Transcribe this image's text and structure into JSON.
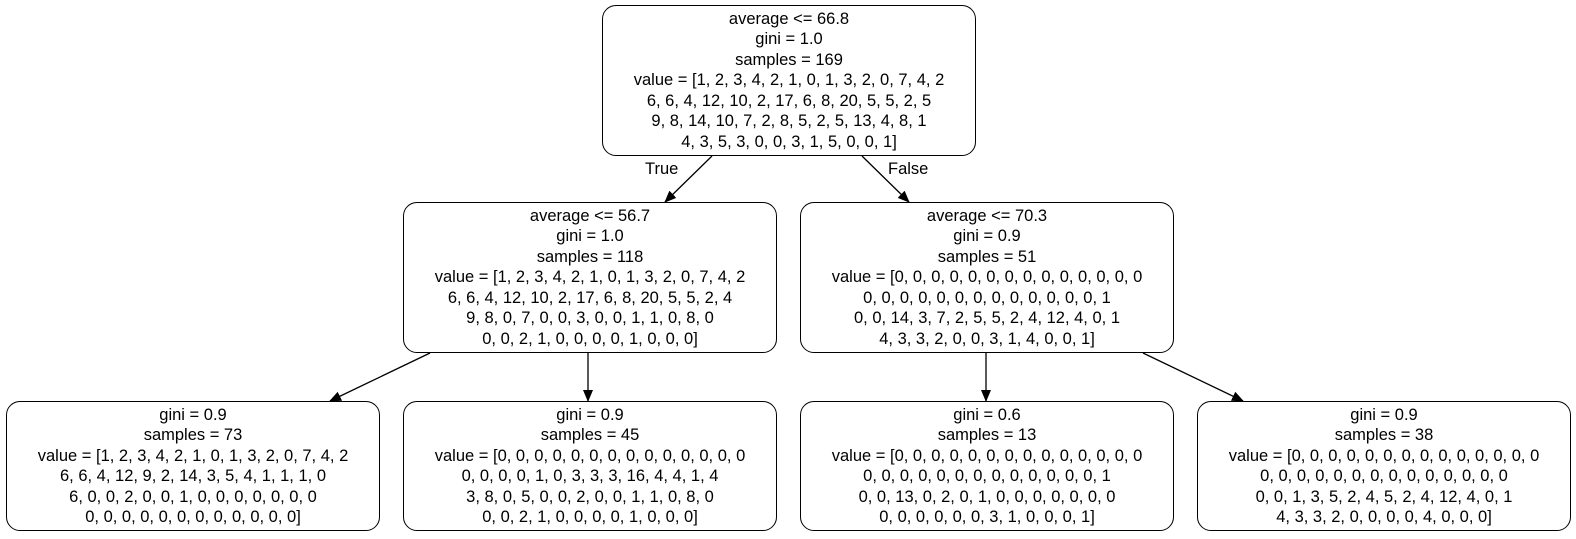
{
  "nodes": {
    "root": {
      "lines": [
        "average <= 66.8",
        "gini = 1.0",
        "samples = 169",
        "value = [1, 2, 3, 4, 2, 1, 0, 1, 3, 2, 0, 7, 4, 2",
        "6, 6, 4, 12, 10, 2, 17, 6, 8, 20, 5, 5, 2, 5",
        "9, 8, 14, 10, 7, 2, 8, 5, 2, 5, 13, 4, 8, 1",
        "4, 3, 5, 3, 0, 0, 3, 1, 5, 0, 0, 1]"
      ]
    },
    "left": {
      "lines": [
        "average <= 56.7",
        "gini = 1.0",
        "samples = 118",
        "value = [1, 2, 3, 4, 2, 1, 0, 1, 3, 2, 0, 7, 4, 2",
        "6, 6, 4, 12, 10, 2, 17, 6, 8, 20, 5, 5, 2, 4",
        "9, 8, 0, 7, 0, 0, 3, 0, 0, 1, 1, 0, 8, 0",
        "0, 0, 2, 1, 0, 0, 0, 0, 1, 0, 0, 0]"
      ]
    },
    "right": {
      "lines": [
        "average <= 70.3",
        "gini = 0.9",
        "samples = 51",
        "value = [0, 0, 0, 0, 0, 0, 0, 0, 0, 0, 0, 0, 0, 0",
        "0, 0, 0, 0, 0, 0, 0, 0, 0, 0, 0, 0, 0, 1",
        "0, 0, 14, 3, 7, 2, 5, 5, 2, 4, 12, 4, 0, 1",
        "4, 3, 3, 2, 0, 0, 3, 1, 4, 0, 0, 1]"
      ]
    },
    "left_left": {
      "lines": [
        "gini = 0.9",
        "samples = 73",
        "value = [1, 2, 3, 4, 2, 1, 0, 1, 3, 2, 0, 7, 4, 2",
        "6, 6, 4, 12, 9, 2, 14, 3, 5, 4, 1, 1, 1, 0",
        "6, 0, 0, 2, 0, 0, 1, 0, 0, 0, 0, 0, 0, 0",
        "0, 0, 0, 0, 0, 0, 0, 0, 0, 0, 0, 0]"
      ]
    },
    "left_right": {
      "lines": [
        "gini = 0.9",
        "samples = 45",
        "value = [0, 0, 0, 0, 0, 0, 0, 0, 0, 0, 0, 0, 0, 0",
        "0, 0, 0, 0, 1, 0, 3, 3, 3, 16, 4, 4, 1, 4",
        "3, 8, 0, 5, 0, 0, 2, 0, 0, 1, 1, 0, 8, 0",
        "0, 0, 2, 1, 0, 0, 0, 0, 1, 0, 0, 0]"
      ]
    },
    "right_left": {
      "lines": [
        "gini = 0.6",
        "samples = 13",
        "value = [0, 0, 0, 0, 0, 0, 0, 0, 0, 0, 0, 0, 0, 0",
        "0, 0, 0, 0, 0, 0, 0, 0, 0, 0, 0, 0, 0, 1",
        "0, 0, 13, 0, 2, 0, 1, 0, 0, 0, 0, 0, 0, 0",
        "0, 0, 0, 0, 0, 0, 3, 1, 0, 0, 0, 1]"
      ]
    },
    "right_right": {
      "lines": [
        "gini = 0.9",
        "samples = 38",
        "value = [0, 0, 0, 0, 0, 0, 0, 0, 0, 0, 0, 0, 0, 0",
        "0, 0, 0, 0, 0, 0, 0, 0, 0, 0, 0, 0, 0, 0",
        "0, 0, 1, 3, 5, 2, 4, 5, 2, 4, 12, 4, 0, 1",
        "4, 3, 3, 2, 0, 0, 0, 0, 4, 0, 0, 0]"
      ]
    }
  },
  "edge_labels": {
    "true": "True",
    "false": "False"
  },
  "colors": {
    "stroke": "#000000",
    "background": "#ffffff",
    "text": "#000000"
  }
}
